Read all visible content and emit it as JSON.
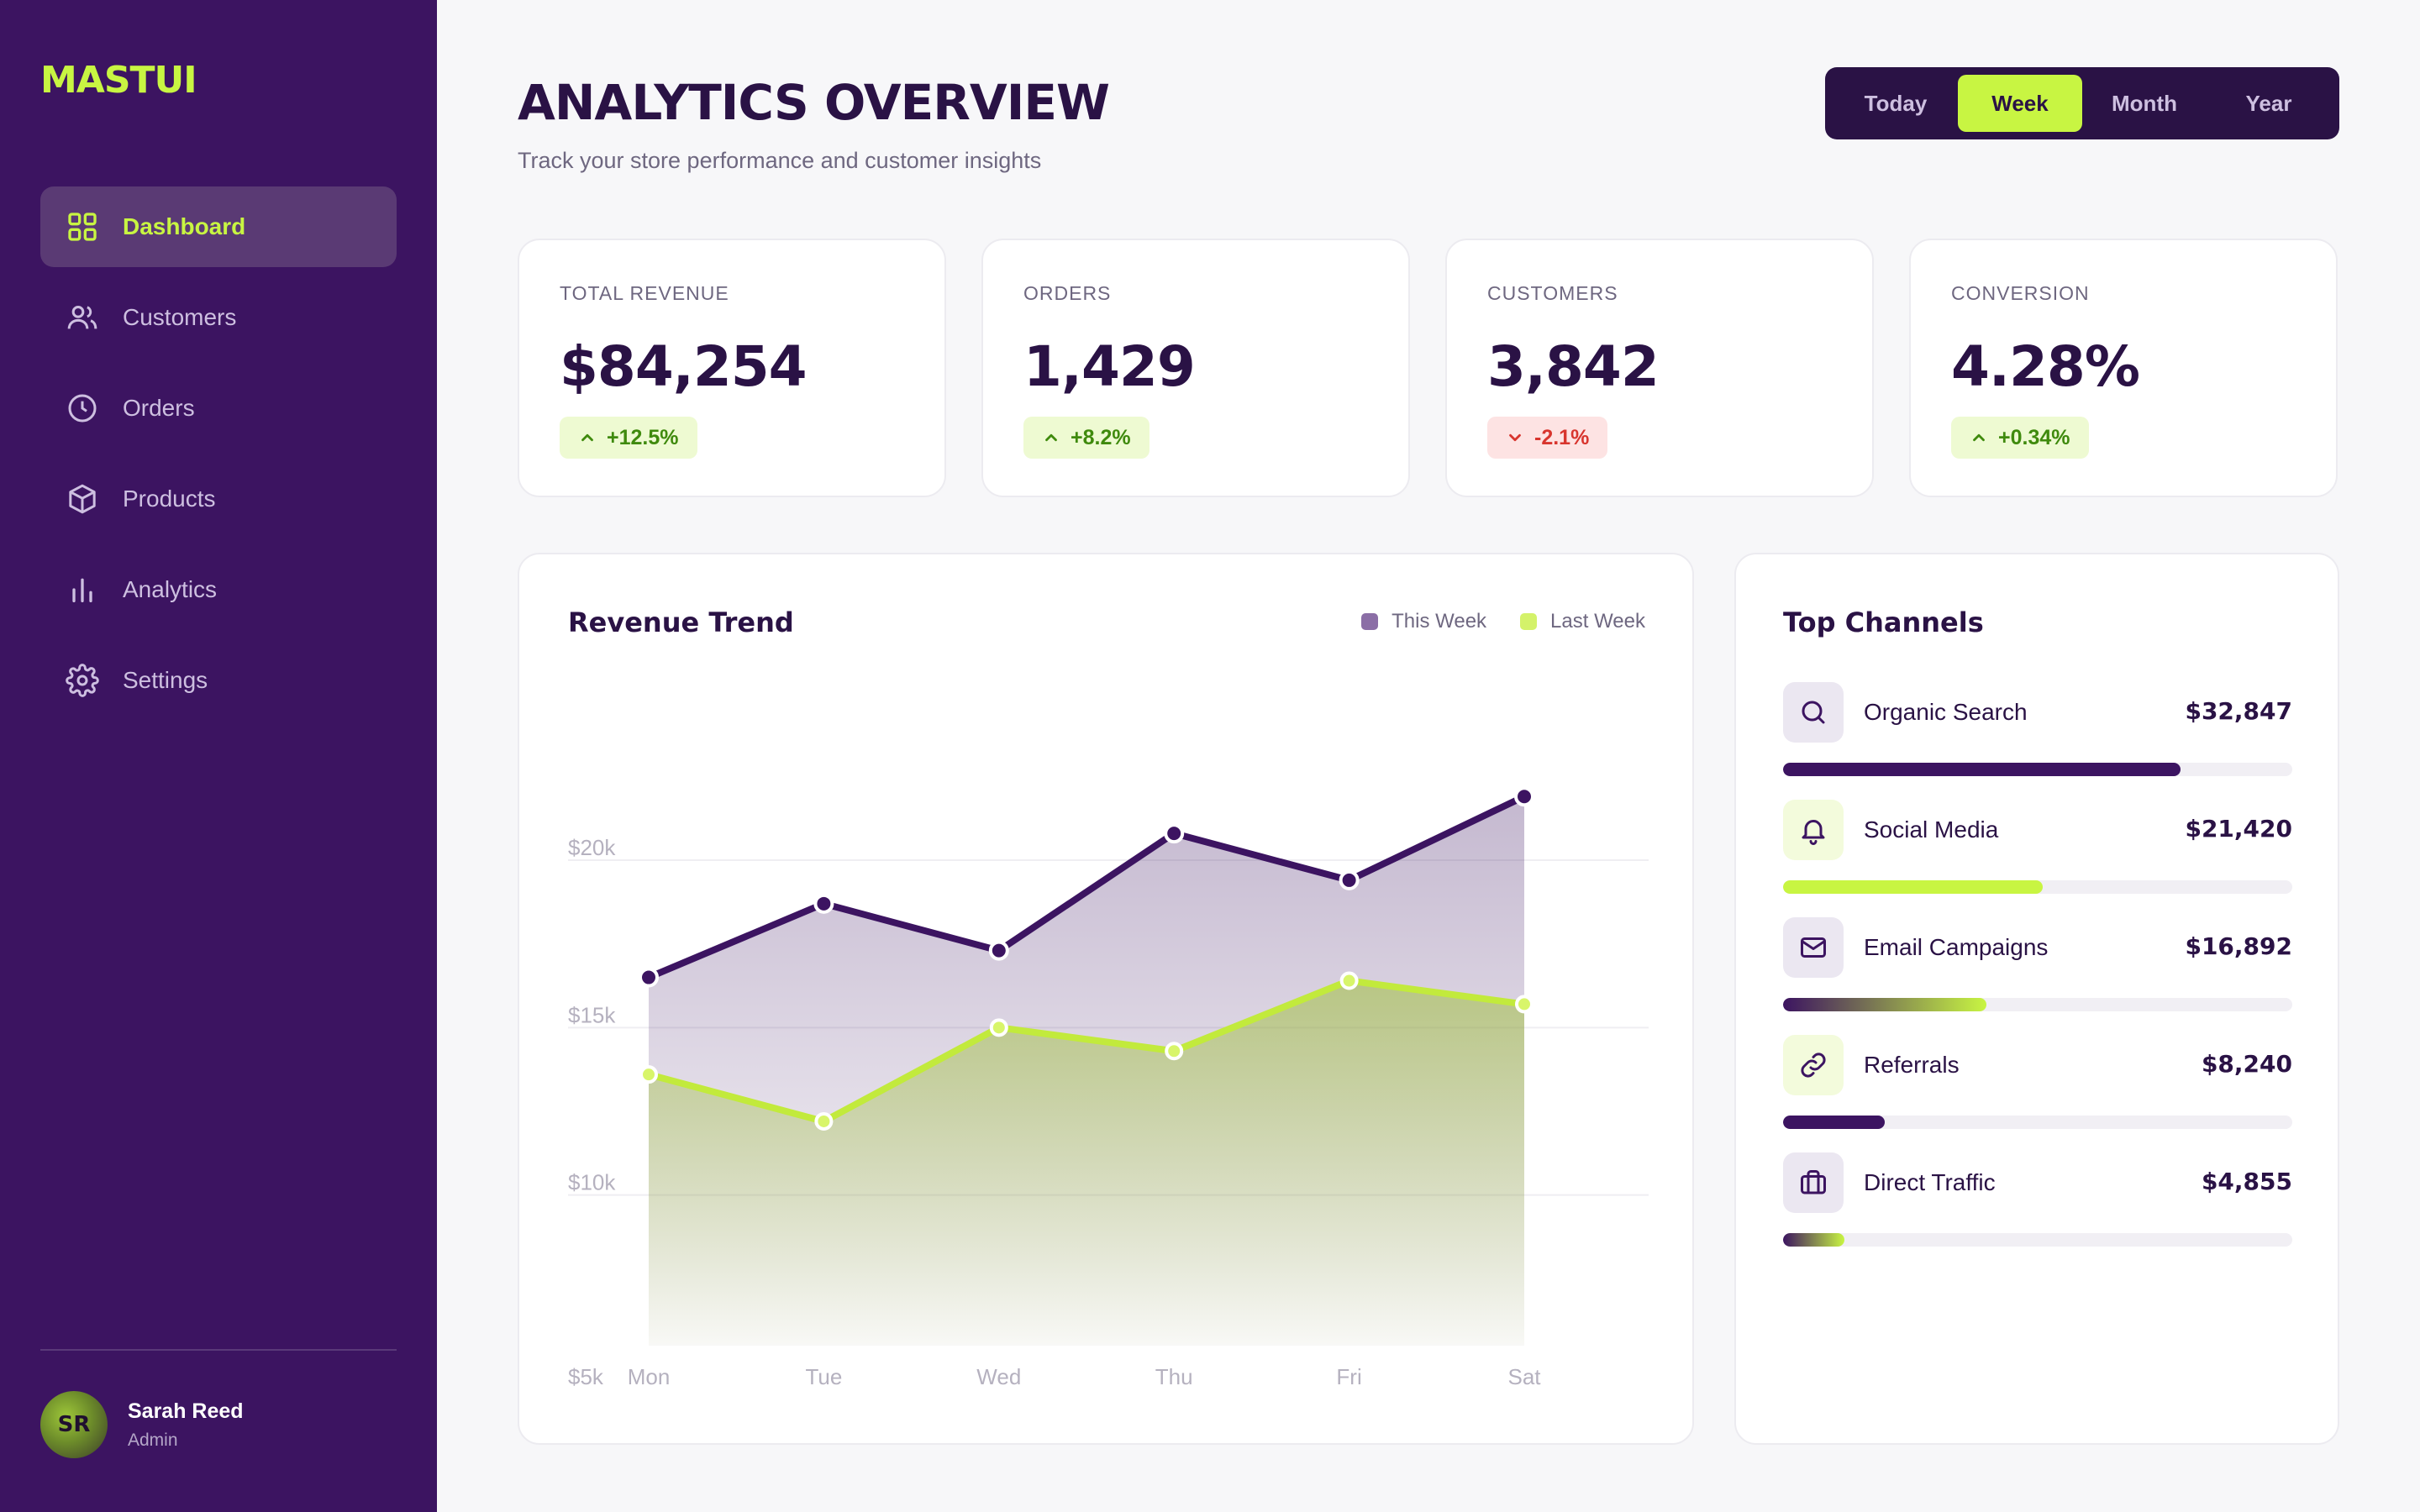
{
  "brand": "MASTUI",
  "nav": [
    {
      "label": "Dashboard",
      "icon": "grid-icon",
      "active": true
    },
    {
      "label": "Customers",
      "icon": "users-icon",
      "active": false
    },
    {
      "label": "Orders",
      "icon": "clock-icon",
      "active": false
    },
    {
      "label": "Products",
      "icon": "box-icon",
      "active": false
    },
    {
      "label": "Analytics",
      "icon": "bar-chart-icon",
      "active": false
    },
    {
      "label": "Settings",
      "icon": "gear-icon",
      "active": false
    }
  ],
  "user": {
    "initials": "SR",
    "name": "Sarah Reed",
    "role": "Admin"
  },
  "header": {
    "title": "ANALYTICS OVERVIEW",
    "subtitle": "Track your store performance and customer insights",
    "ranges": [
      "Today",
      "Week",
      "Month",
      "Year"
    ],
    "active_range": "Week"
  },
  "stats": [
    {
      "label": "TOTAL REVENUE",
      "value": "$84,254",
      "delta": "+12.5%",
      "direction": "up"
    },
    {
      "label": "ORDERS",
      "value": "1,429",
      "delta": "+8.2%",
      "direction": "up"
    },
    {
      "label": "CUSTOMERS",
      "value": "3,842",
      "delta": "-2.1%",
      "direction": "down"
    },
    {
      "label": "CONVERSION",
      "value": "4.28%",
      "delta": "+0.34%",
      "direction": "up"
    }
  ],
  "colors": {
    "sidebar": "#3c1461",
    "accent": "#c8f542",
    "primary": "#3c1461",
    "this_week": "#3c1461",
    "last_week": "#c2ea3c",
    "legend_this_week": "#8b6ea6",
    "legend_last_week": "#d4f26a"
  },
  "revenue": {
    "title": "Revenue Trend",
    "legend": [
      "This Week",
      "Last Week"
    ]
  },
  "chart_data": {
    "type": "area",
    "title": "Revenue Trend",
    "categories": [
      "Mon",
      "Tue",
      "Wed",
      "Thu",
      "Fri",
      "Sat"
    ],
    "y_ticks": [
      "$5k",
      "$10k",
      "$15k",
      "$20k"
    ],
    "ylim": [
      5000,
      20000
    ],
    "series": [
      {
        "name": "This Week",
        "values": [
          16500,
          18700,
          17300,
          20800,
          19400,
          21900
        ]
      },
      {
        "name": "Last Week",
        "values": [
          13600,
          12200,
          15000,
          14300,
          16400,
          15700
        ]
      }
    ],
    "grid": true,
    "legend_position": "top-right"
  },
  "channels": {
    "title": "Top Channels",
    "items": [
      {
        "name": "Organic Search",
        "value": "$32,847",
        "icon": "search-icon",
        "progress": 0.78,
        "style": "solid-primary"
      },
      {
        "name": "Social Media",
        "value": "$21,420",
        "icon": "bell-icon",
        "progress": 0.51,
        "style": "solid-accent"
      },
      {
        "name": "Email Campaigns",
        "value": "$16,892",
        "icon": "mail-icon",
        "progress": 0.4,
        "style": "gradient"
      },
      {
        "name": "Referrals",
        "value": "$8,240",
        "icon": "link-icon",
        "progress": 0.2,
        "style": "solid-primary"
      },
      {
        "name": "Direct Traffic",
        "value": "$4,855",
        "icon": "briefcase-icon",
        "progress": 0.12,
        "style": "gradient"
      }
    ]
  }
}
